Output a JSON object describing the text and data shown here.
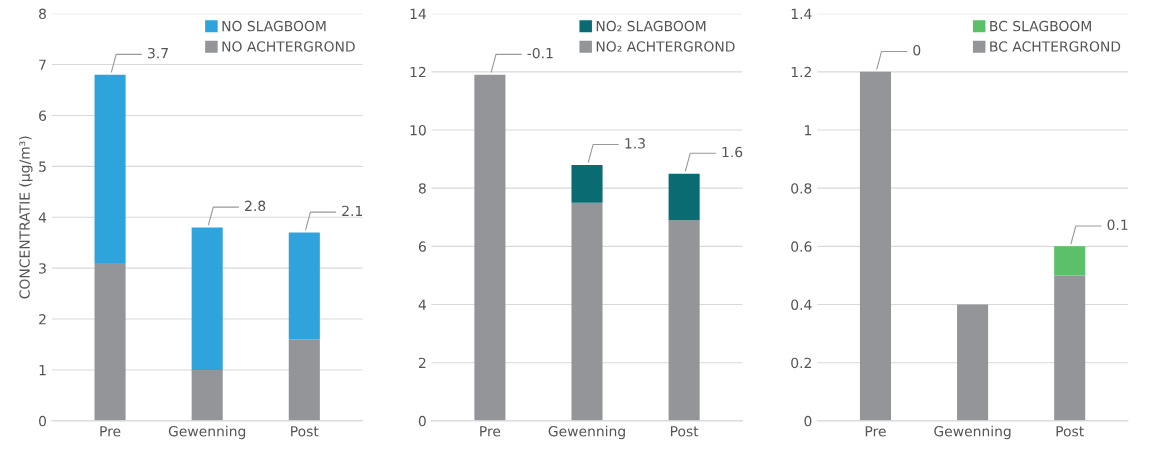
{
  "chart_data": [
    {
      "type": "bar",
      "stacked": true,
      "ylabel": "CONCENTRATIE (µg/m³)",
      "categories": [
        "Pre",
        "Gewenning",
        "Post"
      ],
      "ylim": [
        0,
        8
      ],
      "yticks": [
        0,
        1,
        2,
        3,
        4,
        5,
        6,
        7,
        8
      ],
      "grid": "y",
      "legend": "top right",
      "series": [
        {
          "name": "NO ACHTERGROND",
          "color": "#939598",
          "values": [
            3.1,
            1.0,
            1.6
          ]
        },
        {
          "name": "NO SLAGBOOM",
          "color": "#2ea3dc",
          "values": [
            3.7,
            2.8,
            2.1
          ],
          "value_labels": [
            "3.7",
            "2.8",
            "2.1"
          ]
        }
      ]
    },
    {
      "type": "bar",
      "stacked": true,
      "categories": [
        "Pre",
        "Gewenning",
        "Post"
      ],
      "ylim": [
        0,
        14
      ],
      "yticks": [
        0,
        2,
        4,
        6,
        8,
        10,
        12,
        14
      ],
      "grid": "y",
      "legend": "top right",
      "series": [
        {
          "name": "NO₂ ACHTERGROND",
          "color": "#939598",
          "values": [
            11.9,
            7.5,
            6.9
          ]
        },
        {
          "name": "NO₂ SLAGBOOM",
          "color": "#0b6b73",
          "values": [
            null,
            1.3,
            1.6
          ],
          "value_labels": [
            "-0.1",
            "1.3",
            "1.6"
          ]
        }
      ]
    },
    {
      "type": "bar",
      "stacked": true,
      "categories": [
        "Pre",
        "Gewenning",
        "Post"
      ],
      "ylim": [
        0,
        1.4
      ],
      "yticks": [
        0,
        0.2,
        0.4,
        0.6,
        0.8,
        1,
        1.2,
        1.4
      ],
      "grid": "y",
      "legend": "top right",
      "series": [
        {
          "name": "BC ACHTERGROND",
          "color": "#939598",
          "values": [
            1.2,
            0.4,
            0.5
          ]
        },
        {
          "name": "BC SLAGBOOM",
          "color": "#5cbf6a",
          "values": [
            0,
            null,
            0.1
          ],
          "value_labels": [
            "0",
            null,
            "0.1"
          ]
        }
      ]
    }
  ]
}
